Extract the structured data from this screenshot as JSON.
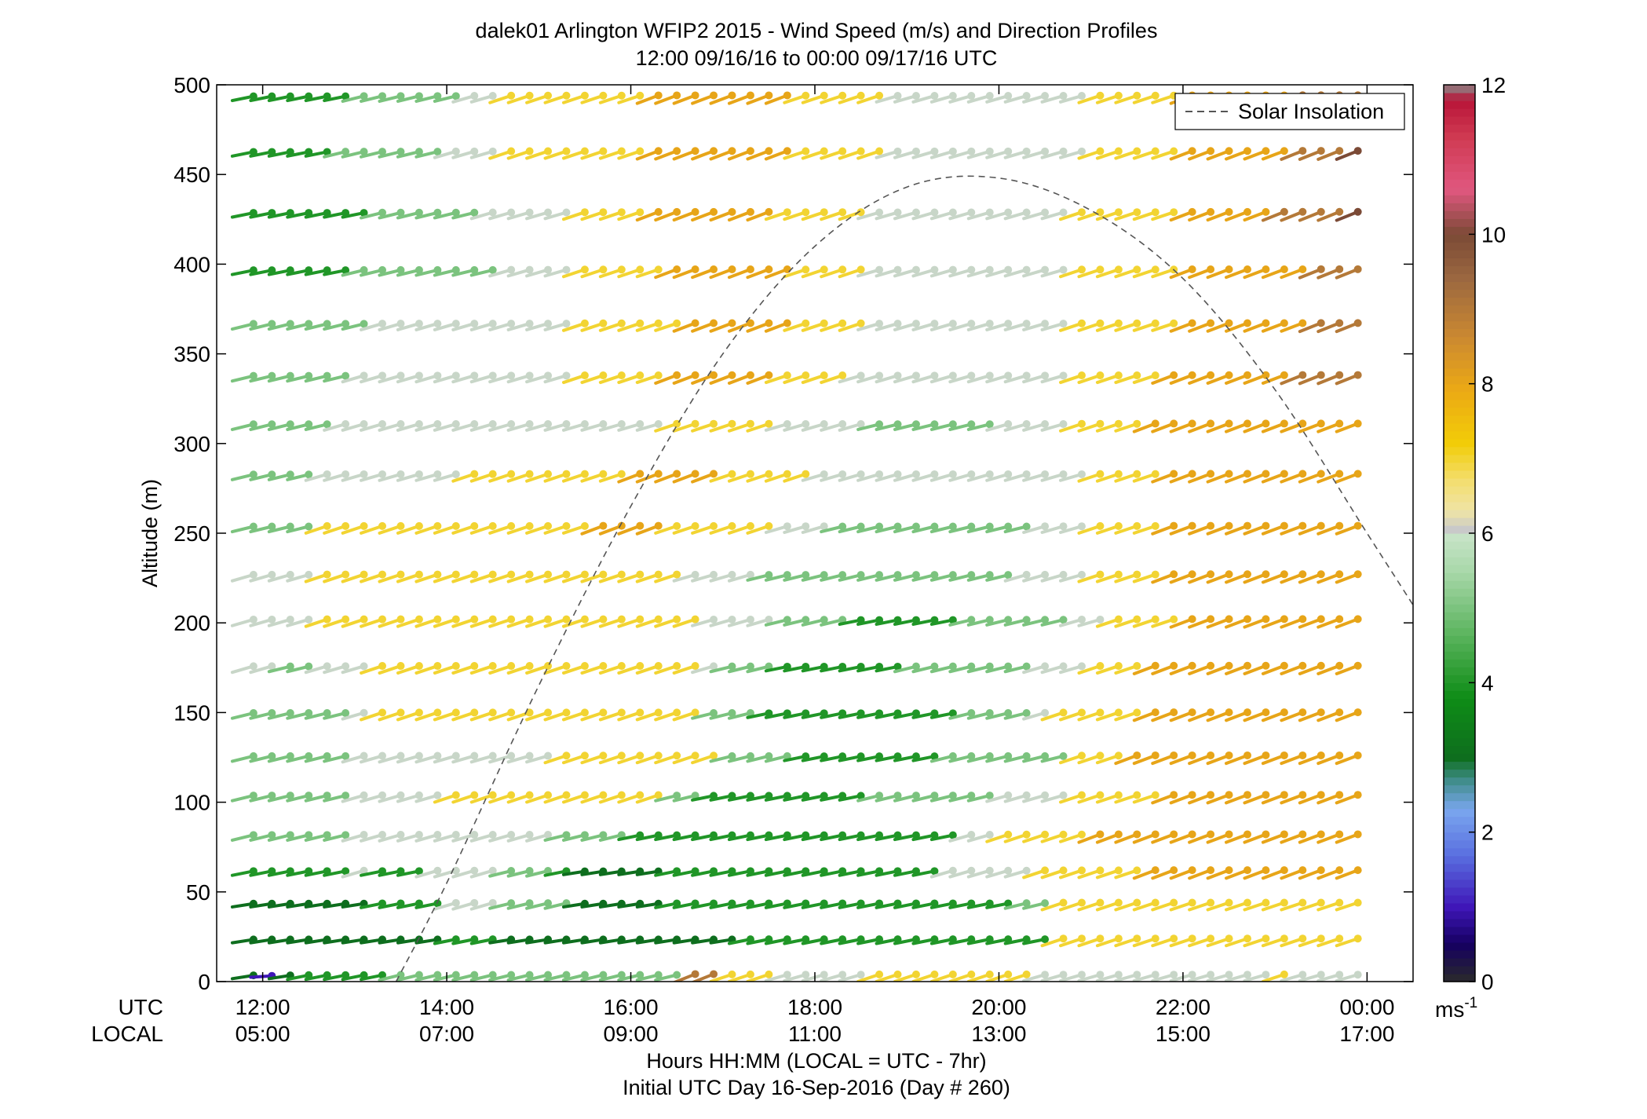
{
  "chart_data": {
    "type": "wind-barb-profile",
    "title": "dalek01 Arlington WFIP2 2015 - Wind Speed (m/s) and Direction Profiles",
    "subtitle": "12:00 09/16/16 to 00:00 09/17/16  UTC",
    "ylabel": "Altitude (m)",
    "xlabel": "Hours HH:MM  (LOCAL = UTC - 7hr)",
    "xlabel2": "Initial UTC Day 16-Sep-2016 (Day # 260)",
    "x_row_labels": [
      "UTC",
      "LOCAL"
    ],
    "x_ticks_utc": [
      "12:00",
      "14:00",
      "16:00",
      "18:00",
      "20:00",
      "22:00",
      "00:00"
    ],
    "x_ticks_local": [
      "05:00",
      "07:00",
      "09:00",
      "11:00",
      "13:00",
      "15:00",
      "17:00"
    ],
    "x_tick_hours": [
      12,
      14,
      16,
      18,
      20,
      22,
      24
    ],
    "xlim_hours": [
      11.5,
      24.5
    ],
    "ylim": [
      0,
      500
    ],
    "yticks": [
      0,
      50,
      100,
      150,
      200,
      250,
      300,
      350,
      400,
      450,
      500
    ],
    "grid": false,
    "legend_position": "top-right",
    "legend": [
      "Solar Insolation"
    ],
    "solar_insolation": {
      "style": "dashed",
      "color": "#555555",
      "hours": [
        13.45,
        14.0,
        15.0,
        16.0,
        17.0,
        18.0,
        19.0,
        20.0,
        21.0,
        22.0,
        23.0,
        24.0,
        24.5
      ],
      "altitude": [
        0,
        55,
        165,
        265,
        350,
        410,
        443,
        448,
        430,
        392,
        330,
        250,
        210
      ]
    },
    "barb_altitudes": [
      3,
      23,
      43,
      61,
      81,
      103,
      125,
      149,
      175,
      201,
      226,
      253,
      282,
      310,
      337,
      366,
      396,
      428,
      462,
      493
    ],
    "time_start_hour": 11.9,
    "time_step_hours": 0.2,
    "barbs_per_level": 61,
    "speed_rows_mps": [
      "31344444555555555555555599777666667777777776666666666666766666",
      "33333333333444333333333333344444444444444444777777777777777777",
      "33333334444666555533333444444444444444444455777777777777777777",
      "44444464446666555433333444444444444444666667777778888888888888",
      "55555566666666666555544444444444444444466777778888888888888888",
      "55555566666777777777777554444444445555555666677777888888888888",
      "55555566666666666777777777555544444444555555577788888888888888",
      "55555567777777777777777775554444444444455556777778888888888888",
      "66556667777777777777777776555444444455555556667778888888888888",
      "66667777777777777777777776666555544444455555566777788888888888",
      "66667777777777777777777766665555555555555566667777888888888888",
      "55557777777777777778888777777666555555555556667777888888888888",
      "55556666666677777777788888777776666666666666667777888888888888",
      "55555666666666666666666777777666665555555666677778888888888888",
      "55555566666666666677777888888777766666666666677777888888899999",
      "55555556666666666677777788888877776666666666677777788888889999",
      "44444455555555666677777888888877776666666666677777788888889999",
      "44444445555556666677778888888777776666666666677777788888999910",
      "44444555555666777777778888888877777666666666667777788888899910",
      "44444455555566777777778888888877777666666666667777788888899999"
    ],
    "colorbar": {
      "label": "ms-1",
      "min": 0,
      "max": 12,
      "ticks": [
        0,
        2,
        4,
        6,
        8,
        10,
        12
      ]
    }
  }
}
